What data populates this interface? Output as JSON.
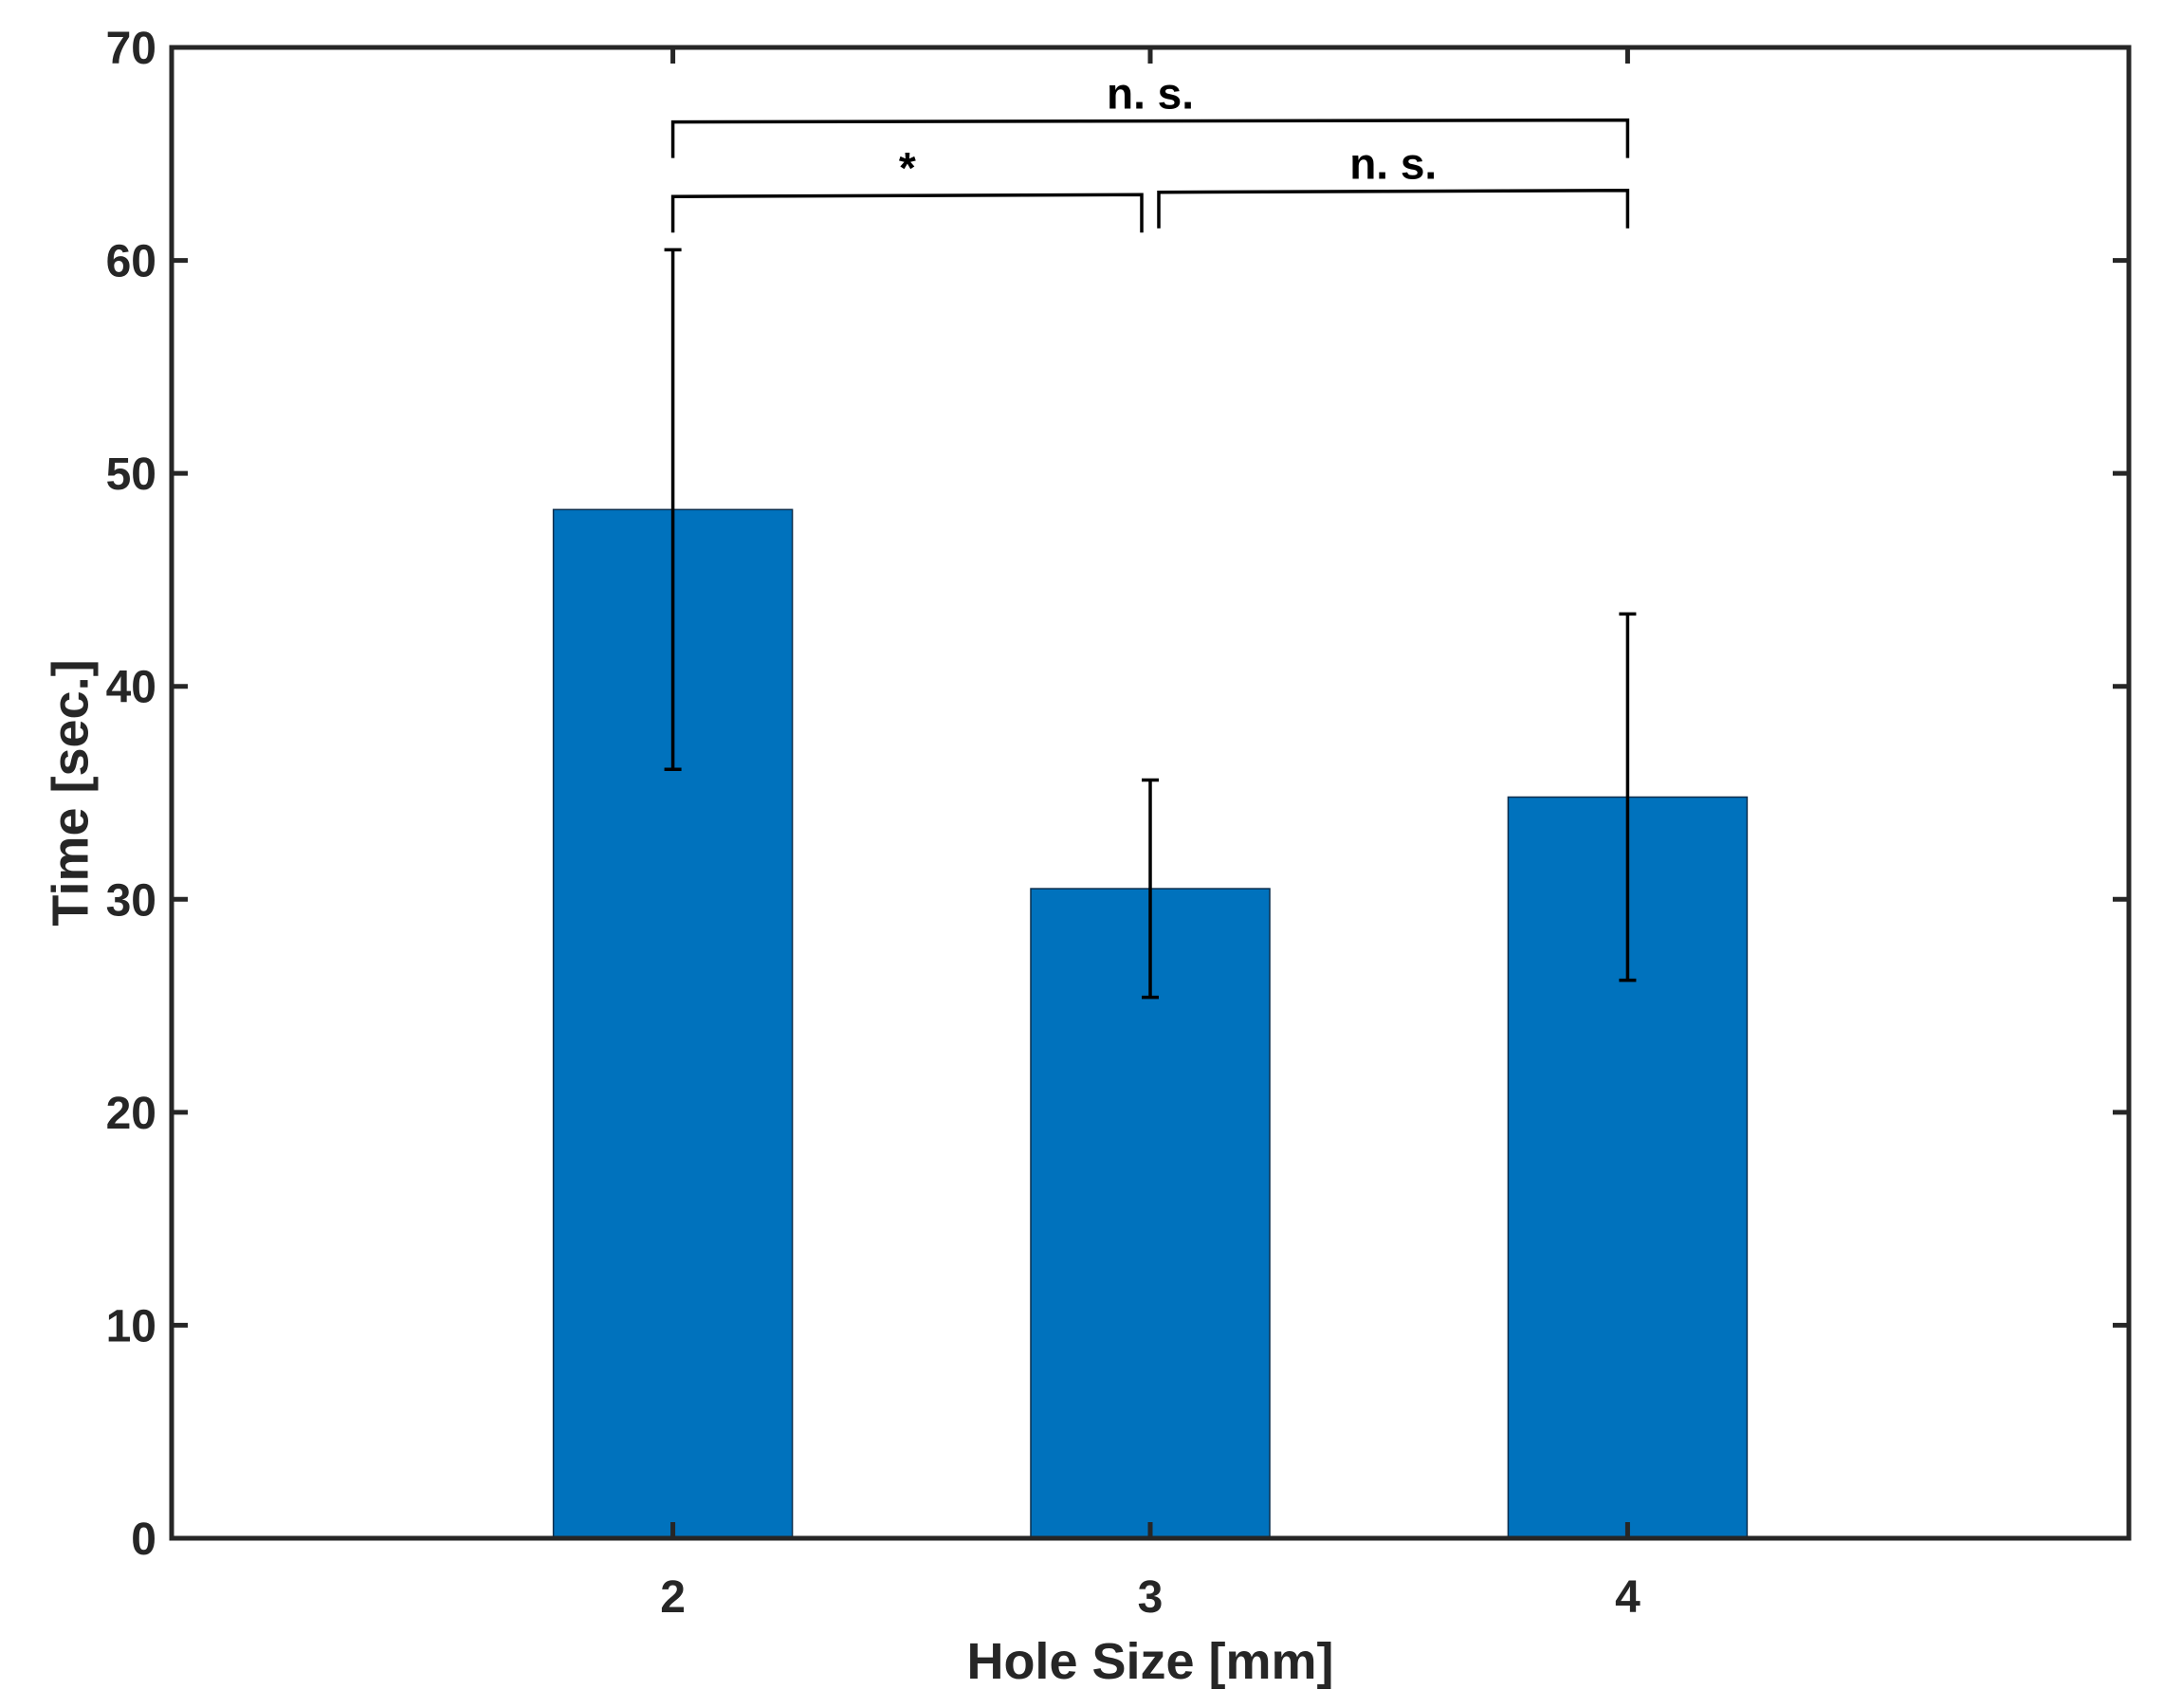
{
  "chart_data": {
    "type": "bar",
    "title": "",
    "xlabel": "Hole Size [mm]",
    "ylabel": "Time [sec.]",
    "categories": [
      "2",
      "3",
      "4"
    ],
    "x": [
      2,
      3,
      4
    ],
    "xlim": [
      0.95,
      5.05
    ],
    "values": [
      48.3,
      30.5,
      34.8
    ],
    "error_upper": [
      60.5,
      35.6,
      43.4
    ],
    "error_lower": [
      36.1,
      25.4,
      26.2
    ],
    "ylim": [
      0,
      70
    ],
    "yticks": [
      0,
      10,
      20,
      30,
      40,
      50,
      60,
      70
    ],
    "ytick_labels": [
      "0",
      "10",
      "20",
      "30",
      "40",
      "50",
      "60",
      "70"
    ],
    "bar_color": "#0072BD",
    "axis_color": "#262626",
    "grid": false,
    "significance": [
      {
        "from": "2",
        "to": "4",
        "label": "n. s.",
        "level": 66.5
      },
      {
        "from": "2",
        "to": "3",
        "label": "*",
        "level": 63.0
      },
      {
        "from": "3",
        "to": "4",
        "label": "n. s.",
        "level": 63.2
      }
    ]
  }
}
